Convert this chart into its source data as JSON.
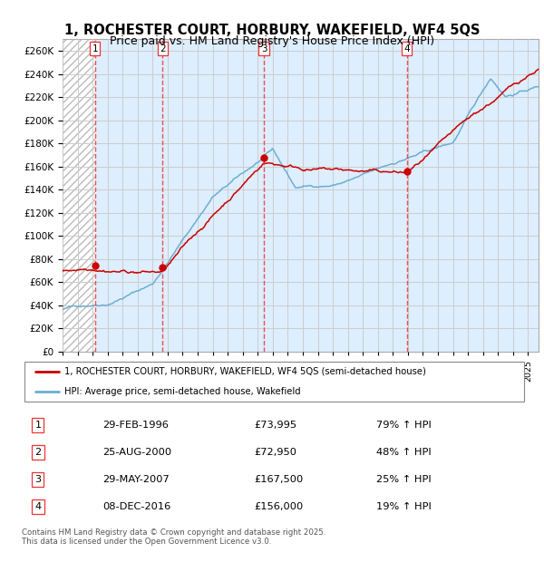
{
  "title": "1, ROCHESTER COURT, HORBURY, WAKEFIELD, WF4 5QS",
  "subtitle": "Price paid vs. HM Land Registry's House Price Index (HPI)",
  "legend_line1": "1, ROCHESTER COURT, HORBURY, WAKEFIELD, WF4 5QS (semi-detached house)",
  "legend_line2": "HPI: Average price, semi-detached house, Wakefield",
  "footer1": "Contains HM Land Registry data © Crown copyright and database right 2025.",
  "footer2": "This data is licensed under the Open Government Licence v3.0.",
  "sales": [
    {
      "num": 1,
      "date_label": "29-FEB-1996",
      "price_label": "£73,995",
      "pct_label": "79% ↑ HPI",
      "year": 1996.16
    },
    {
      "num": 2,
      "date_label": "25-AUG-2000",
      "price_label": "£72,950",
      "pct_label": "48% ↑ HPI",
      "year": 2000.65
    },
    {
      "num": 3,
      "date_label": "29-MAY-2007",
      "price_label": "£167,500",
      "pct_label": "25% ↑ HPI",
      "year": 2007.41
    },
    {
      "num": 4,
      "date_label": "08-DEC-2016",
      "price_label": "£156,000",
      "pct_label": "19% ↑ HPI",
      "year": 2016.93
    }
  ],
  "sale_values": [
    73995,
    72950,
    167500,
    156000
  ],
  "hpi_color": "#6dadd1",
  "price_color": "#cc0000",
  "sale_marker_color": "#cc0000",
  "grid_color": "#cccccc",
  "vline_color": "#ee3333",
  "hatch_color": "#bbbbbb",
  "ylim": [
    0,
    270000
  ],
  "ytick_step": 20000,
  "bg_color": "#ddeeff",
  "hatch_end_year": 1996.16,
  "xmin": 1994,
  "xmax": 2025.7,
  "title_fontsize": 10.5,
  "subtitle_fontsize": 9
}
